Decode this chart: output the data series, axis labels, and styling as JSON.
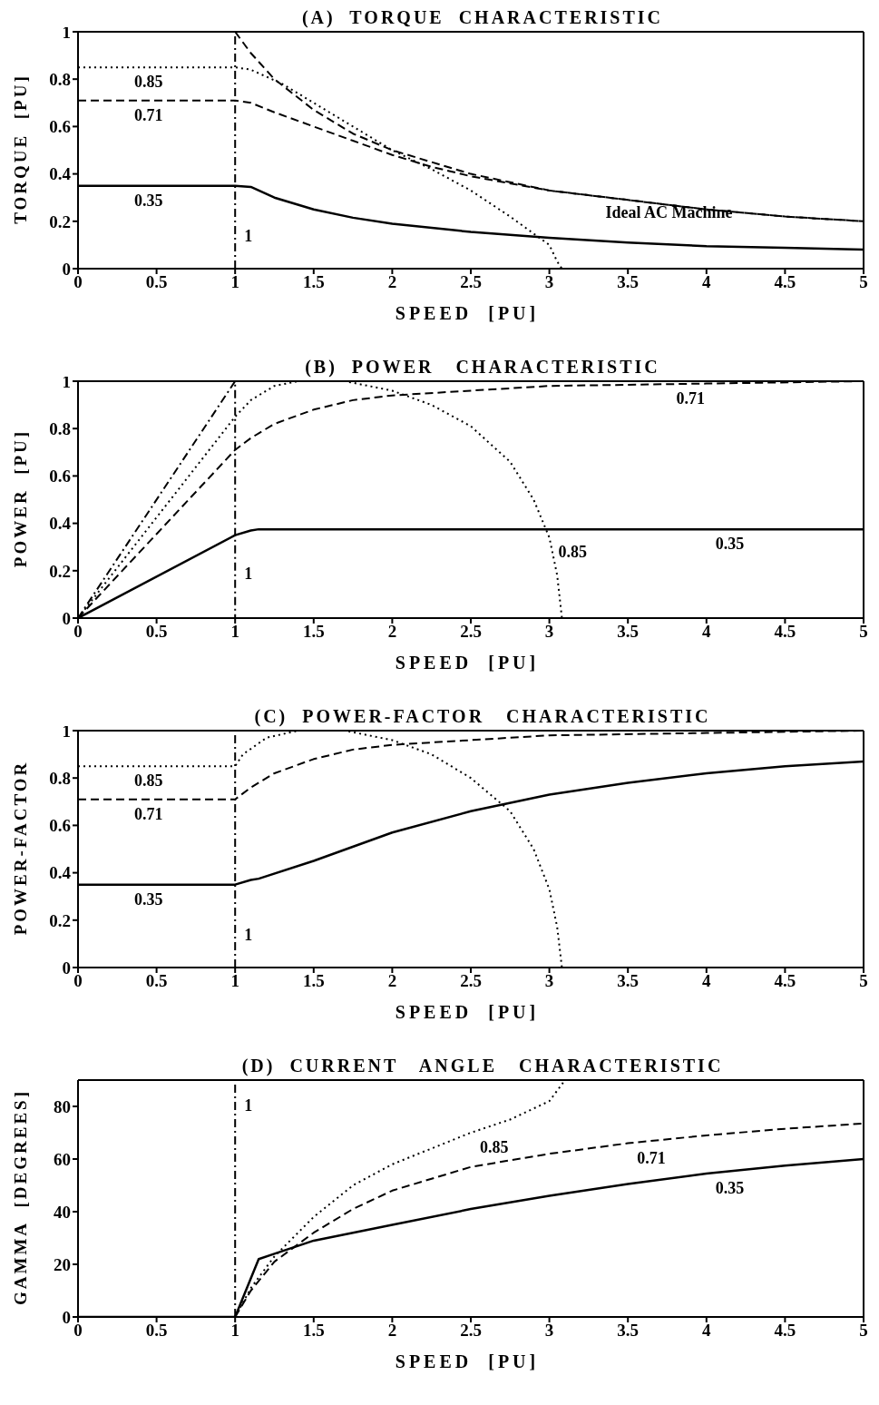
{
  "chart_data": [
    {
      "type": "line",
      "title": "(A)  TORQUE  CHARACTERISTIC",
      "xlabel": "SPEED  [PU]",
      "ylabel": "TORQUE  [PU]",
      "xlim": [
        0,
        5
      ],
      "ylim": [
        0,
        1
      ],
      "xticks": [
        0,
        0.5,
        1,
        1.5,
        2,
        2.5,
        3,
        3.5,
        4,
        4.5,
        5
      ],
      "yticks": [
        0,
        0.2,
        0.4,
        0.6,
        0.8,
        1
      ],
      "marker": "none",
      "ref_lines": [
        {
          "axis": "x",
          "value": 1,
          "color": "#000000",
          "line_style": "dashdot"
        }
      ],
      "series": [
        {
          "color": "#000000",
          "line_style": "dashed",
          "x": [
            1,
            1.1,
            1.25,
            1.5,
            1.75,
            2,
            2.5,
            3,
            3.5,
            4,
            4.5,
            5
          ],
          "values": [
            1,
            0.91,
            0.8,
            0.67,
            0.57,
            0.5,
            0.4,
            0.33,
            0.29,
            0.25,
            0.22,
            0.2
          ]
        },
        {
          "color": "#000000",
          "line_style": "dotted",
          "x": [
            0,
            1,
            1.1,
            1.3,
            1.5,
            1.75,
            2,
            2.25,
            2.5,
            2.75,
            3,
            3.05,
            3.08
          ],
          "values": [
            0.85,
            0.85,
            0.84,
            0.78,
            0.7,
            0.6,
            0.5,
            0.42,
            0.33,
            0.22,
            0.1,
            0.03,
            0
          ]
        },
        {
          "color": "#000000",
          "line_style": "dashed",
          "x": [
            0,
            1,
            1.1,
            1.25,
            1.5,
            1.75,
            2,
            2.25,
            2.5,
            3,
            3.5,
            4,
            4.5,
            5
          ],
          "values": [
            0.71,
            0.71,
            0.7,
            0.66,
            0.6,
            0.54,
            0.48,
            0.43,
            0.39,
            0.33,
            0.29,
            0.25,
            0.22,
            0.2
          ]
        },
        {
          "color": "#000000",
          "line_style": "solid",
          "x": [
            0,
            1,
            1.1,
            1.25,
            1.5,
            1.75,
            2,
            2.5,
            3,
            3.5,
            4,
            4.5,
            5
          ],
          "values": [
            0.35,
            0.35,
            0.345,
            0.3,
            0.25,
            0.215,
            0.19,
            0.155,
            0.13,
            0.11,
            0.095,
            0.088,
            0.08
          ]
        }
      ],
      "annotations": [
        {
          "text": "0.85",
          "x": 0.3,
          "y": 0.85
        },
        {
          "text": "0.71",
          "x": 0.3,
          "y": 0.71
        },
        {
          "text": "0.35",
          "x": 0.3,
          "y": 0.35
        },
        {
          "text": "1",
          "x": 1,
          "y": 0.2
        },
        {
          "text": "Ideal AC Machine",
          "x": 3.3,
          "y": 0.3
        }
      ]
    },
    {
      "type": "line",
      "title": "(B)  POWER   CHARACTERISTIC",
      "xlabel": "SPEED  [PU]",
      "ylabel": "POWER  [PU]",
      "xlim": [
        0,
        5
      ],
      "ylim": [
        0,
        1
      ],
      "xticks": [
        0,
        0.5,
        1,
        1.5,
        2,
        2.5,
        3,
        3.5,
        4,
        4.5,
        5
      ],
      "yticks": [
        0,
        0.2,
        0.4,
        0.6,
        0.8,
        1
      ],
      "marker": "none",
      "series": [
        {
          "color": "#000000",
          "line_style": "dashdot",
          "x": [
            0,
            1,
            1
          ],
          "values": [
            0,
            1,
            0
          ]
        },
        {
          "color": "#000000",
          "line_style": "dotted",
          "x": [
            0,
            1,
            1.1,
            1.25,
            1.4,
            1.7,
            2,
            2.25,
            2.5,
            2.75,
            2.9,
            3,
            3.05,
            3.08
          ],
          "values": [
            0,
            0.85,
            0.92,
            0.98,
            1,
            1,
            0.96,
            0.9,
            0.81,
            0.66,
            0.5,
            0.34,
            0.18,
            0
          ]
        },
        {
          "color": "#000000",
          "line_style": "dashed",
          "x": [
            0,
            1,
            1.1,
            1.25,
            1.5,
            1.75,
            2,
            2.5,
            3,
            3.5,
            4,
            5
          ],
          "values": [
            0,
            0.71,
            0.76,
            0.82,
            0.88,
            0.92,
            0.94,
            0.96,
            0.98,
            0.985,
            0.99,
            1
          ]
        },
        {
          "color": "#000000",
          "line_style": "solid",
          "x": [
            0,
            1,
            1.1,
            1.15,
            5
          ],
          "values": [
            0,
            0.35,
            0.37,
            0.375,
            0.375
          ]
        }
      ],
      "annotations": [
        {
          "text": "0.71",
          "x": 3.75,
          "y": 0.987
        },
        {
          "text": "0.85",
          "x": 3,
          "y": 0.34
        },
        {
          "text": "0.35",
          "x": 4,
          "y": 0.375
        },
        {
          "text": "1",
          "x": 1,
          "y": 0.25
        }
      ]
    },
    {
      "type": "line",
      "title": "(C)  POWER-FACTOR   CHARACTERISTIC",
      "xlabel": "SPEED  [PU]",
      "ylabel": "POWER-FACTOR",
      "xlim": [
        0,
        5
      ],
      "ylim": [
        0,
        1
      ],
      "xticks": [
        0,
        0.5,
        1,
        1.5,
        2,
        2.5,
        3,
        3.5,
        4,
        4.5,
        5
      ],
      "yticks": [
        0,
        0.2,
        0.4,
        0.6,
        0.8,
        1
      ],
      "marker": "none",
      "ref_lines": [
        {
          "axis": "x",
          "value": 1,
          "color": "#000000",
          "line_style": "dashdot"
        }
      ],
      "series": [
        {
          "color": "#000000",
          "line_style": "dotted",
          "x": [
            0,
            1,
            1.05,
            1.2,
            1.4,
            1.7,
            2,
            2.25,
            2.5,
            2.75,
            2.9,
            3,
            3.05,
            3.08
          ],
          "values": [
            0.85,
            0.85,
            0.9,
            0.97,
            1,
            1,
            0.96,
            0.9,
            0.8,
            0.66,
            0.5,
            0.33,
            0.17,
            0
          ]
        },
        {
          "color": "#000000",
          "line_style": "dashed",
          "x": [
            0,
            1,
            1.1,
            1.25,
            1.5,
            1.75,
            2,
            2.5,
            3,
            4,
            5
          ],
          "values": [
            0.71,
            0.71,
            0.76,
            0.82,
            0.88,
            0.92,
            0.94,
            0.96,
            0.98,
            0.99,
            1
          ]
        },
        {
          "color": "#000000",
          "line_style": "solid",
          "x": [
            0,
            1,
            1.1,
            1.15,
            1.5,
            2,
            2.5,
            3,
            3.5,
            4,
            4.5,
            5
          ],
          "values": [
            0.35,
            0.35,
            0.37,
            0.375,
            0.45,
            0.57,
            0.66,
            0.73,
            0.78,
            0.82,
            0.85,
            0.87
          ]
        }
      ],
      "annotations": [
        {
          "text": "0.85",
          "x": 0.3,
          "y": 0.85
        },
        {
          "text": "0.71",
          "x": 0.3,
          "y": 0.71
        },
        {
          "text": "0.35",
          "x": 0.3,
          "y": 0.35
        },
        {
          "text": "1",
          "x": 1,
          "y": 0.2
        }
      ]
    },
    {
      "type": "line",
      "title": "(D)  CURRENT   ANGLE   CHARACTERISTIC",
      "xlabel": "SPEED  [PU]",
      "ylabel": "GAMMA  [DEGREES]",
      "xlim": [
        0,
        5
      ],
      "ylim": [
        0,
        90
      ],
      "xticks": [
        0,
        0.5,
        1,
        1.5,
        2,
        2.5,
        3,
        3.5,
        4,
        4.5,
        5
      ],
      "yticks": [
        0,
        20,
        40,
        60,
        80
      ],
      "marker": "none",
      "ref_lines": [
        {
          "axis": "x",
          "value": 1,
          "color": "#000000",
          "line_style": "dashdot"
        }
      ],
      "series": [
        {
          "color": "#000000",
          "line_style": "solid",
          "x": [
            0,
            1,
            1.15,
            1.25,
            1.5,
            2,
            2.5,
            3,
            3.5,
            4,
            4.5,
            5
          ],
          "values": [
            0,
            0,
            22,
            24,
            29,
            35,
            41,
            46,
            50.5,
            54.5,
            57.5,
            60
          ]
        },
        {
          "color": "#000000",
          "line_style": "dashed",
          "x": [
            1,
            1.1,
            1.25,
            1.5,
            1.75,
            2,
            2.5,
            3,
            3.5,
            4,
            4.5,
            5
          ],
          "values": [
            0,
            10,
            21,
            32,
            41,
            48,
            57,
            62,
            66,
            69,
            71.5,
            73.5
          ]
        },
        {
          "color": "#000000",
          "line_style": "dotted",
          "x": [
            1,
            1.1,
            1.25,
            1.5,
            1.75,
            2,
            2.5,
            2.75,
            3,
            3.05,
            3.1
          ],
          "values": [
            0,
            11,
            23,
            38,
            50,
            58,
            70,
            75,
            82,
            86,
            90
          ]
        }
      ],
      "annotations": [
        {
          "text": "1",
          "x": 1,
          "y": 86
        },
        {
          "text": "0.85",
          "x": 2.5,
          "y": 70
        },
        {
          "text": "0.71",
          "x": 3.5,
          "y": 66
        },
        {
          "text": "0.35",
          "x": 4,
          "y": 54.5
        }
      ]
    }
  ]
}
